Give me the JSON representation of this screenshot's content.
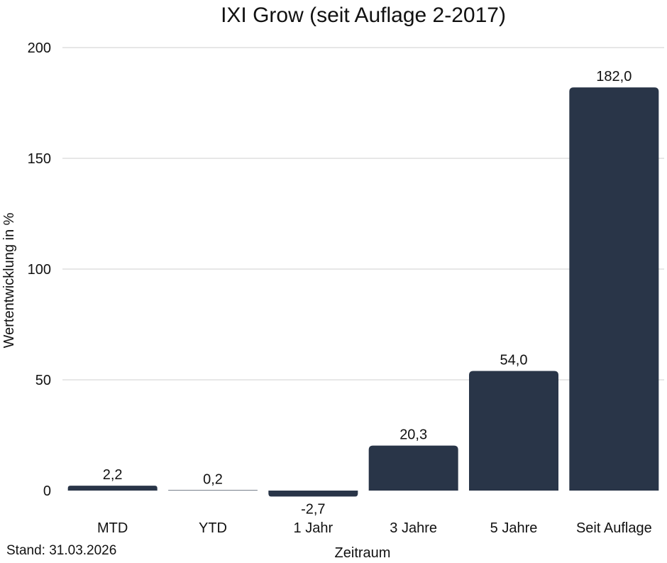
{
  "chart_data": {
    "type": "bar",
    "title": "IXI Grow (seit Auflage 2-2017)",
    "xlabel": "Zeitraum",
    "ylabel": "Wertentwicklung in %",
    "categories": [
      "MTD",
      "YTD",
      "1 Jahr",
      "3 Jahre",
      "5 Jahre",
      "Seit Auflage"
    ],
    "values": [
      2.2,
      0.2,
      -2.7,
      20.3,
      54.0,
      182.0
    ],
    "value_labels": [
      "2,2",
      "0,2",
      "-2,7",
      "20,3",
      "54,0",
      "182,0"
    ],
    "y_ticks": [
      0,
      50,
      100,
      150,
      200
    ],
    "ylim": [
      0,
      200
    ],
    "grid": true,
    "legend": false,
    "bar_color": "#293548"
  },
  "footnote": "Stand: 31.03.2026"
}
